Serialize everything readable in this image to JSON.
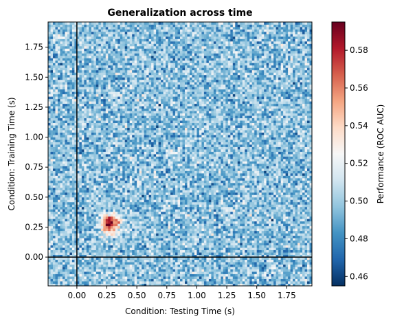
{
  "chart_data": {
    "type": "heatmap",
    "title": "Generalization across time",
    "xlabel": "Condition: Testing Time (s)",
    "ylabel": "Condition: Training Time (s)",
    "colorbar_label": "Performance (ROC AUC)",
    "colormap": "RdBu_r",
    "xlim": [
      -0.24,
      1.96
    ],
    "ylim": [
      -0.24,
      1.96
    ],
    "xticks": [
      0.0,
      0.25,
      0.5,
      0.75,
      1.0,
      1.25,
      1.5,
      1.75
    ],
    "xtick_labels": [
      "0.00",
      "0.25",
      "0.50",
      "0.75",
      "1.00",
      "1.25",
      "1.50",
      "1.75"
    ],
    "yticks": [
      0.0,
      0.25,
      0.5,
      0.75,
      1.0,
      1.25,
      1.5,
      1.75
    ],
    "ytick_labels": [
      "0.00",
      "0.25",
      "0.50",
      "0.75",
      "1.00",
      "1.25",
      "1.50",
      "1.75"
    ],
    "vmin": 0.455,
    "vmax": 0.595,
    "cbar_ticks": [
      0.46,
      0.48,
      0.5,
      0.52,
      0.54,
      0.56,
      0.58
    ],
    "cbar_tick_labels": [
      "0.46",
      "0.48",
      "0.50",
      "0.52",
      "0.54",
      "0.56",
      "0.58"
    ],
    "grid": false,
    "grid_step_s": 0.02,
    "baseline": 0.497,
    "noise_amplitude": 0.015,
    "peak": {
      "train_time": 0.28,
      "test_time": 0.28,
      "value": 0.59,
      "spread_s": 0.055
    },
    "reference_lines": {
      "vertical_at": 0.0,
      "horizontal_at": 0.0
    }
  }
}
